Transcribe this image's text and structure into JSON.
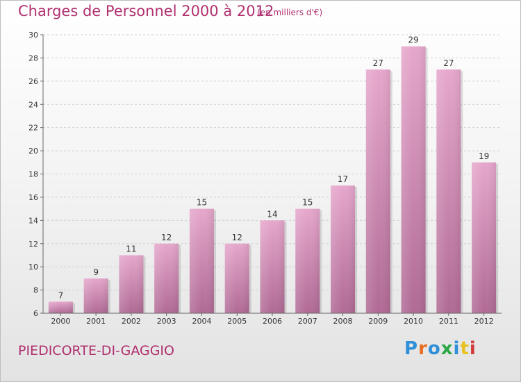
{
  "header": {
    "title": "Charges de Personnel 2000 à 2012",
    "subtitle": "(en milliers d'€)"
  },
  "footer": {
    "commune": "PIEDICORTE-DI-GAGGIO",
    "logo_text": "Proxiti"
  },
  "colors": {
    "bar_top": "#e6a7cc",
    "bar_bottom": "#b06a95",
    "title": "#b0306f",
    "logo": [
      "#2f8fd8",
      "#e86c1f",
      "#2f8fd8",
      "#2aa843",
      "#2f8fd8",
      "#e8c21f",
      "#d23a3a"
    ]
  },
  "chart_data": {
    "type": "bar",
    "title": "Charges de Personnel 2000 à 2012",
    "subtitle": "(en milliers d'€)",
    "categories": [
      "2000",
      "2001",
      "2002",
      "2003",
      "2004",
      "2005",
      "2006",
      "2007",
      "2008",
      "2009",
      "2010",
      "2011",
      "2012"
    ],
    "values": [
      7,
      9,
      11,
      12,
      15,
      12,
      14,
      15,
      17,
      27,
      29,
      27,
      19
    ],
    "ylim": [
      6,
      30
    ],
    "yticks": [
      6,
      8,
      10,
      12,
      14,
      16,
      18,
      20,
      22,
      24,
      26,
      28,
      30
    ],
    "grid": true,
    "legend": "none"
  }
}
